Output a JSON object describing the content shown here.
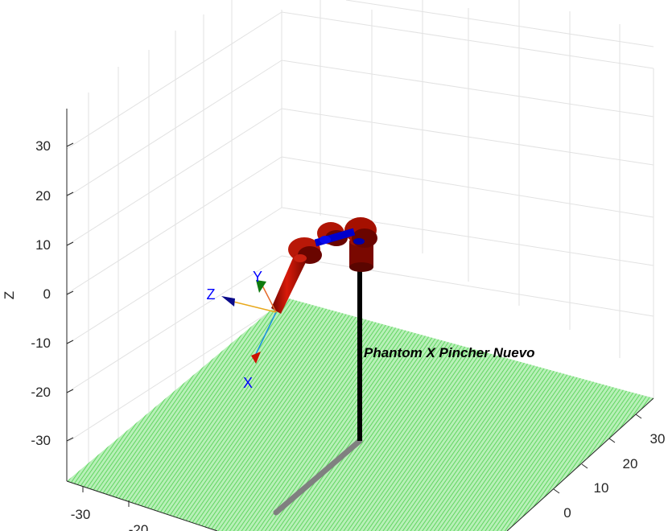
{
  "figure": {
    "robot_label": "Phantom X Pincher Nuevo",
    "z_axis_label": "Z",
    "frame_labels": {
      "x": "X",
      "y": "Y",
      "z": "Z"
    }
  },
  "chart_data": {
    "type": "3d-robot-plot",
    "z_ticks": [
      "30",
      "20",
      "10",
      "0",
      "-10",
      "-20",
      "-30"
    ],
    "x_ticks": [
      "-30",
      "-20"
    ],
    "y_ticks": [
      "30",
      "20",
      "10",
      "0"
    ],
    "colors": {
      "floor": "#7fe07f",
      "link": "#cc1100",
      "joint": "#0000cc",
      "base_pole": "#000000",
      "base_shadow": "#808080",
      "grid": "#e0e0e0"
    }
  }
}
